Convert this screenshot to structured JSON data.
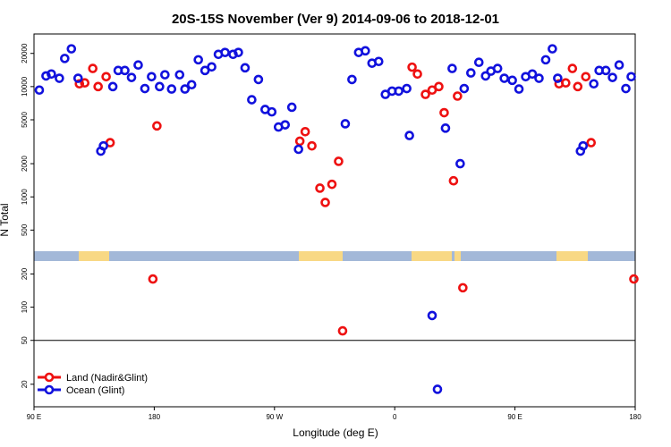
{
  "chart_data": {
    "type": "scatter",
    "title": "20S-15S November (Ver 9)   2014-09-06 to 2018-12-01",
    "xlabel": "Longitude (deg E)",
    "ylabel": "N Total",
    "xlim": [
      90,
      540
    ],
    "xticks": [
      {
        "value": 90,
        "label": "90 E"
      },
      180,
      {
        "value": 270,
        "label": "90 W"
      },
      {
        "value": 360,
        "label": "0"
      },
      {
        "value": 450,
        "label": "90 E"
      },
      {
        "value": 540,
        "label": "180"
      }
    ],
    "ylim": [
      12.5,
      30000
    ],
    "log_y": true,
    "yticks": [
      20,
      50,
      100,
      200,
      500,
      1000,
      2000,
      5000,
      10000,
      20000
    ],
    "reference_line": 50,
    "legend": "lower left",
    "series": [
      {
        "name": "Land (Nadir&Glint)",
        "color": "#ee1111",
        "x": [
          124,
          128,
          134,
          138,
          144,
          147,
          179,
          182,
          289,
          293,
          298,
          304,
          308,
          313,
          318,
          321,
          373,
          377,
          383,
          388,
          393,
          397,
          404,
          407,
          411,
          483,
          488,
          493,
          497,
          503,
          507,
          539
        ],
        "values": [
          10600,
          10800,
          14600,
          10000,
          12300,
          3100,
          180,
          4400,
          3200,
          3900,
          2900,
          1200,
          890,
          1300,
          2100,
          61,
          15000,
          13000,
          8500,
          9300,
          10000,
          5800,
          1400,
          8200,
          150,
          10600,
          10800,
          14600,
          10000,
          12300,
          3100,
          180
        ]
      },
      {
        "name": "Ocean (Glint)",
        "color": "#1111dd",
        "x": [
          94,
          99,
          103,
          109,
          113,
          118,
          123,
          140,
          142,
          149,
          153,
          158,
          163,
          168,
          173,
          178,
          184,
          188,
          193,
          199,
          203,
          208,
          213,
          218,
          223,
          228,
          233,
          239,
          243,
          248,
          253,
          258,
          263,
          268,
          273,
          278,
          283,
          288,
          323,
          328,
          333,
          338,
          343,
          348,
          353,
          358,
          363,
          369,
          371,
          388,
          392,
          398,
          403,
          409,
          412,
          417,
          423,
          428,
          432,
          437,
          442,
          448,
          453,
          458,
          463,
          468,
          473,
          478,
          482,
          499,
          501,
          509,
          513,
          518,
          523,
          528,
          533,
          537
        ],
        "values": [
          9300,
          12500,
          13000,
          11900,
          18000,
          22000,
          11900,
          2600,
          2900,
          10000,
          14000,
          14000,
          12100,
          15700,
          9600,
          12300,
          10000,
          12800,
          9500,
          12800,
          9500,
          10400,
          17500,
          14000,
          15100,
          19600,
          20400,
          19600,
          20400,
          14800,
          7600,
          11600,
          6200,
          5900,
          4300,
          4500,
          6500,
          2700,
          4600,
          11600,
          20400,
          21100,
          16300,
          16900,
          8500,
          9100,
          9100,
          9600,
          3600,
          84,
          18,
          4200,
          14600,
          2000,
          9600,
          13300,
          16600,
          12500,
          13800,
          14600,
          11900,
          11400,
          9500,
          12300,
          13000,
          11900,
          17500,
          22000,
          11900,
          2600,
          2900,
          10600,
          14000,
          14000,
          12100,
          15700,
          9600,
          12300
        ]
      }
    ]
  }
}
